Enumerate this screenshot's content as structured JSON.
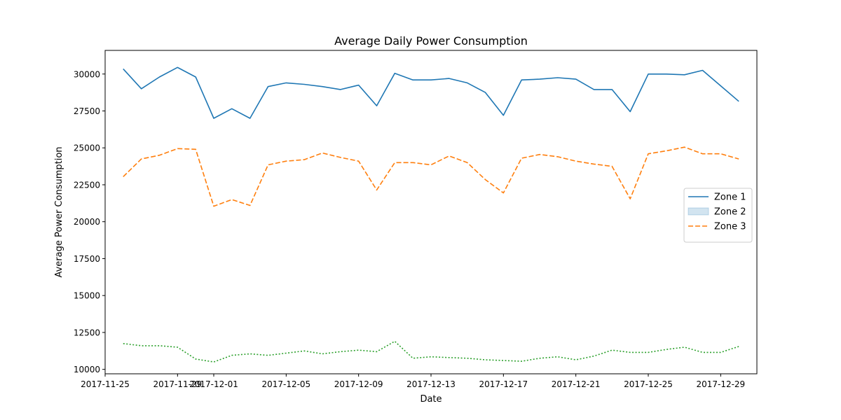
{
  "chart_data": {
    "type": "line",
    "title": "Average Daily Power Consumption",
    "xlabel": "Date",
    "ylabel": "Average Power Consumption",
    "x": [
      "2017-11-26",
      "2017-11-27",
      "2017-11-28",
      "2017-11-29",
      "2017-11-30",
      "2017-12-01",
      "2017-12-02",
      "2017-12-03",
      "2017-12-04",
      "2017-12-05",
      "2017-12-06",
      "2017-12-07",
      "2017-12-08",
      "2017-12-09",
      "2017-12-10",
      "2017-12-11",
      "2017-12-12",
      "2017-12-13",
      "2017-12-14",
      "2017-12-15",
      "2017-12-16",
      "2017-12-17",
      "2017-12-18",
      "2017-12-19",
      "2017-12-20",
      "2017-12-21",
      "2017-12-22",
      "2017-12-23",
      "2017-12-24",
      "2017-12-25",
      "2017-12-26",
      "2017-12-27",
      "2017-12-28",
      "2017-12-29",
      "2017-12-30"
    ],
    "xlim": [
      "2017-11-25",
      "2017-12-31"
    ],
    "ylim": [
      9700,
      31600
    ],
    "x_ticks": [
      "2017-11-25",
      "2017-11-29",
      "2017-12-01",
      "2017-12-05",
      "2017-12-09",
      "2017-12-13",
      "2017-12-17",
      "2017-12-21",
      "2017-12-25",
      "2017-12-29"
    ],
    "x_tick_labels": [
      "2017-11-25",
      "2017-11-29",
      "2017-12-01",
      "2017-12-05",
      "2017-12-09",
      "2017-12-13",
      "2017-12-17",
      "2017-12-21",
      "2017-12-25",
      "2017-12-29"
    ],
    "y_ticks": [
      10000,
      12500,
      15000,
      17500,
      20000,
      22500,
      25000,
      27500,
      30000
    ],
    "y_tick_labels": [
      "10000",
      "12500",
      "15000",
      "17500",
      "20000",
      "22500",
      "25000",
      "27500",
      "30000"
    ],
    "grid": false,
    "legend_position": "center-right",
    "series": [
      {
        "name": "Zone 1",
        "legend_style": "line",
        "color": "#1f77b4",
        "dash": "solid",
        "values": [
          30350,
          29000,
          29800,
          30450,
          29800,
          27000,
          27650,
          27000,
          29150,
          29400,
          29300,
          29150,
          28950,
          29250,
          27850,
          30050,
          29600,
          29600,
          29700,
          29400,
          28750,
          27200,
          29600,
          29650,
          29750,
          29650,
          28950,
          28950,
          27450,
          30000,
          30000,
          29950,
          30250,
          29200,
          28150
        ]
      },
      {
        "name": "Zone 2",
        "legend_style": "patch",
        "color": "#2ca02c",
        "dash": "dotted",
        "values": [
          11750,
          11600,
          11600,
          11500,
          10700,
          10500,
          10950,
          11050,
          10950,
          11100,
          11250,
          11050,
          11200,
          11300,
          11200,
          11900,
          10750,
          10850,
          10800,
          10750,
          10650,
          10600,
          10550,
          10750,
          10850,
          10650,
          10900,
          11300,
          11150,
          11150,
          11350,
          11500,
          11150,
          11150,
          11550
        ]
      },
      {
        "name": "Zone 3",
        "legend_style": "line",
        "color": "#ff7f0e",
        "dash": "dashed",
        "values": [
          23050,
          24250,
          24500,
          24950,
          24900,
          21050,
          21500,
          21100,
          23850,
          24100,
          24200,
          24650,
          24350,
          24100,
          22150,
          24000,
          24000,
          23850,
          24450,
          24000,
          22850,
          21950,
          24300,
          24550,
          24400,
          24100,
          23900,
          23750,
          21550,
          24600,
          24800,
          25050,
          24600,
          24600,
          24250
        ]
      }
    ]
  }
}
